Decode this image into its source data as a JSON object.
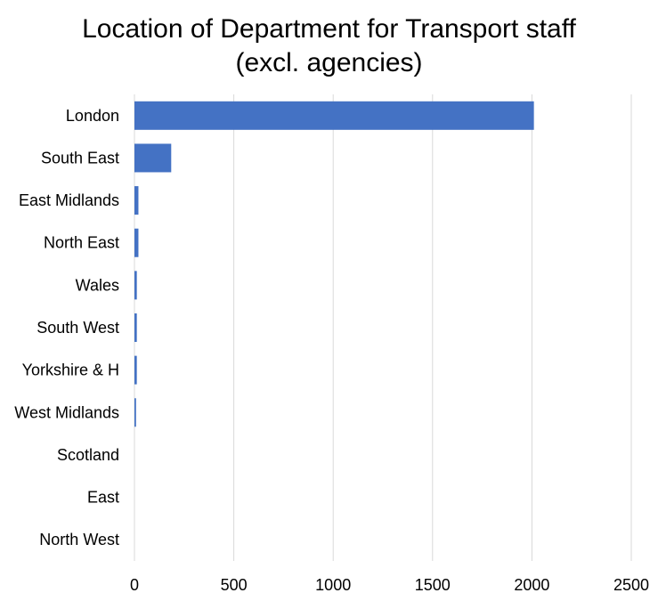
{
  "chart_data": {
    "type": "bar",
    "orientation": "horizontal",
    "title": [
      "Location of Department for Transport staff",
      "(excl. agencies)"
    ],
    "categories": [
      "London",
      "South East",
      "East Midlands",
      "North East",
      "Wales",
      "South West",
      "Yorkshire & H",
      "West Midlands",
      "Scotland",
      "East",
      "North West"
    ],
    "values": [
      2010,
      185,
      20,
      20,
      12,
      12,
      12,
      8,
      0,
      0,
      0
    ],
    "xlim": [
      0,
      2500
    ],
    "xticks": [
      0,
      500,
      1000,
      1500,
      2000,
      2500
    ],
    "grid": "vertical",
    "legend": "none",
    "colors": {
      "bar": "#4472C4",
      "grid": "#D9D9D9"
    }
  }
}
